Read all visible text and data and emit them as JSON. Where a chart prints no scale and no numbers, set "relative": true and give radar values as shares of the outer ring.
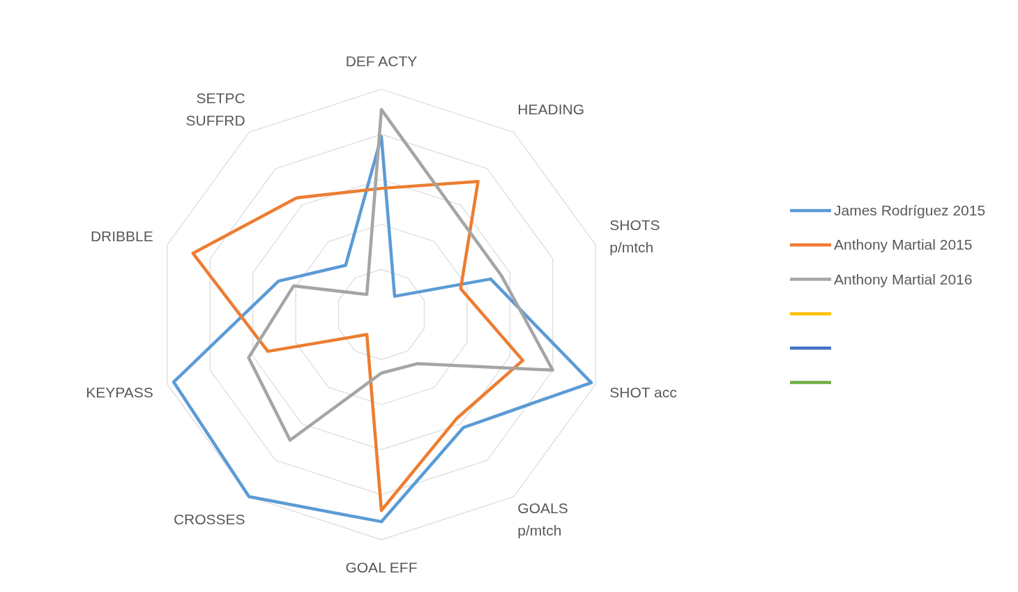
{
  "chart_data": {
    "type": "radar",
    "relative": true,
    "grid": true,
    "legend": "right",
    "line_style": "solid",
    "marker": "none",
    "categories": [
      "DEF ACTY",
      "HEADING",
      "SHOTS\np/mtch",
      "SHOT acc",
      "GOALS\np/mtch",
      "GOAL EFF",
      "CROSSES",
      "KEYPASS",
      "DRIBBLE",
      "SETPC\nSUFFRD"
    ],
    "series": [
      {
        "name": "James Rodríguez 2015",
        "color": "#5b9bd5",
        "values": [
          0.79,
          0.1,
          0.51,
          0.98,
          0.62,
          0.92,
          1.0,
          0.97,
          0.48,
          0.27
        ]
      },
      {
        "name": "Anthony Martial 2015",
        "color": "#ed7d31",
        "values": [
          0.56,
          0.73,
          0.37,
          0.66,
          0.57,
          0.87,
          0.11,
          0.53,
          0.88,
          0.64
        ]
      },
      {
        "name": "Anthony Martial 2016",
        "color": "#a5a5a5",
        "values": [
          0.91,
          0.56,
          0.56,
          0.8,
          0.27,
          0.26,
          0.69,
          0.62,
          0.41,
          0.11
        ]
      },
      {
        "color": "#ffc000",
        "values": [
          null,
          null,
          null,
          null,
          null,
          null,
          null,
          null,
          null,
          null
        ]
      },
      {
        "color": "#4472c4",
        "values": [
          null,
          null,
          null,
          null,
          null,
          null,
          null,
          null,
          null,
          null
        ]
      },
      {
        "color": "#70ad47",
        "values": [
          null,
          null,
          null,
          null,
          null,
          null,
          null,
          null,
          null,
          null
        ]
      }
    ]
  }
}
